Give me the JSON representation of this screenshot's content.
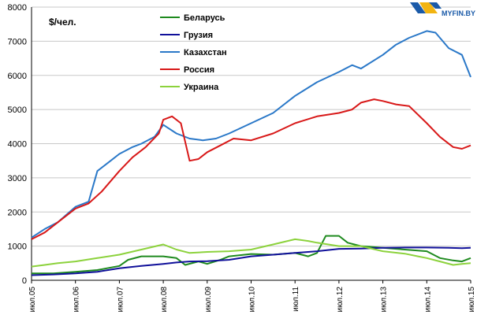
{
  "logo": {
    "text": "MYFIN.BY"
  },
  "chart_data": {
    "type": "line",
    "unit_label": "$/чел.",
    "ylim": [
      0,
      8000
    ],
    "y_ticks": [
      0,
      1000,
      2000,
      3000,
      4000,
      5000,
      6000,
      7000,
      8000
    ],
    "x_ticks": [
      2005,
      2006,
      2007,
      2008,
      2009,
      2010,
      2011,
      2012,
      2013,
      2014,
      2015
    ],
    "x_tick_labels": [
      "июл.05",
      "июл.06",
      "июл.07",
      "июл.08",
      "июл.09",
      "июл.10",
      "июл.11",
      "июл.12",
      "июл.13",
      "июл.14",
      "июл.15"
    ],
    "xlim": [
      2005,
      2015
    ],
    "grid": true,
    "legend_position": "top-center",
    "series": [
      {
        "name": "Беларусь",
        "color": "#1e8a1e",
        "x": [
          2005.0,
          2005.5,
          2006.0,
          2006.5,
          2007.0,
          2007.2,
          2007.5,
          2008.0,
          2008.3,
          2008.5,
          2008.8,
          2009.0,
          2009.3,
          2009.5,
          2010.0,
          2010.5,
          2011.0,
          2011.3,
          2011.5,
          2011.7,
          2012.0,
          2012.2,
          2012.5,
          2013.0,
          2013.5,
          2014.0,
          2014.3,
          2014.6,
          2014.8,
          2015.0
        ],
        "y": [
          200,
          200,
          250,
          300,
          420,
          600,
          700,
          700,
          650,
          450,
          550,
          480,
          600,
          700,
          770,
          750,
          800,
          700,
          800,
          1300,
          1300,
          1100,
          1000,
          950,
          900,
          850,
          650,
          580,
          550,
          650
        ]
      },
      {
        "name": "Грузия",
        "color": "#10109a",
        "x": [
          2005.0,
          2005.5,
          2006.0,
          2006.5,
          2007.0,
          2007.5,
          2008.0,
          2008.3,
          2008.6,
          2009.0,
          2009.5,
          2010.0,
          2010.5,
          2011.0,
          2011.5,
          2012.0,
          2012.5,
          2013.0,
          2013.5,
          2014.0,
          2014.5,
          2014.8,
          2015.0
        ],
        "y": [
          150,
          170,
          200,
          250,
          350,
          420,
          480,
          520,
          550,
          560,
          600,
          700,
          750,
          800,
          850,
          920,
          930,
          950,
          960,
          960,
          950,
          940,
          950
        ]
      },
      {
        "name": "Казахстан",
        "color": "#2a78c8",
        "x": [
          2005.0,
          2005.3,
          2005.6,
          2006.0,
          2006.3,
          2006.5,
          2006.8,
          2007.0,
          2007.3,
          2007.5,
          2007.8,
          2008.0,
          2008.3,
          2008.6,
          2008.9,
          2009.2,
          2009.5,
          2010.0,
          2010.5,
          2011.0,
          2011.5,
          2012.0,
          2012.3,
          2012.5,
          2013.0,
          2013.3,
          2013.6,
          2014.0,
          2014.2,
          2014.5,
          2014.8,
          2015.0
        ],
        "y": [
          1250,
          1500,
          1700,
          2150,
          2300,
          3200,
          3500,
          3700,
          3900,
          4000,
          4200,
          4550,
          4300,
          4150,
          4100,
          4150,
          4300,
          4600,
          4900,
          5400,
          5800,
          6100,
          6300,
          6200,
          6600,
          6900,
          7100,
          7300,
          7250,
          6800,
          6600,
          5950
        ]
      },
      {
        "name": "Россия",
        "color": "#d81818",
        "x": [
          2005.0,
          2005.3,
          2005.6,
          2006.0,
          2006.3,
          2006.6,
          2007.0,
          2007.3,
          2007.6,
          2007.9,
          2008.0,
          2008.2,
          2008.4,
          2008.6,
          2008.8,
          2009.0,
          2009.3,
          2009.6,
          2010.0,
          2010.5,
          2011.0,
          2011.5,
          2012.0,
          2012.3,
          2012.5,
          2012.8,
          2013.0,
          2013.3,
          2013.6,
          2014.0,
          2014.3,
          2014.6,
          2014.8,
          2015.0
        ],
        "y": [
          1200,
          1400,
          1700,
          2100,
          2250,
          2600,
          3200,
          3600,
          3900,
          4300,
          4700,
          4800,
          4600,
          3500,
          3550,
          3750,
          3950,
          4150,
          4100,
          4300,
          4600,
          4800,
          4900,
          5000,
          5200,
          5300,
          5250,
          5150,
          5100,
          4600,
          4200,
          3900,
          3850,
          3950
        ]
      },
      {
        "name": "Украина",
        "color": "#8cd23c",
        "x": [
          2005.0,
          2005.3,
          2005.6,
          2006.0,
          2006.5,
          2007.0,
          2007.5,
          2008.0,
          2008.3,
          2008.6,
          2009.0,
          2009.5,
          2010.0,
          2010.5,
          2011.0,
          2011.3,
          2011.5,
          2012.0,
          2012.5,
          2013.0,
          2013.5,
          2013.8,
          2014.0,
          2014.3,
          2014.6,
          2014.8,
          2015.0
        ],
        "y": [
          400,
          450,
          500,
          550,
          650,
          750,
          900,
          1050,
          900,
          800,
          830,
          850,
          900,
          1050,
          1200,
          1150,
          1100,
          1000,
          1000,
          850,
          780,
          700,
          650,
          550,
          450,
          480,
          500
        ]
      }
    ]
  }
}
